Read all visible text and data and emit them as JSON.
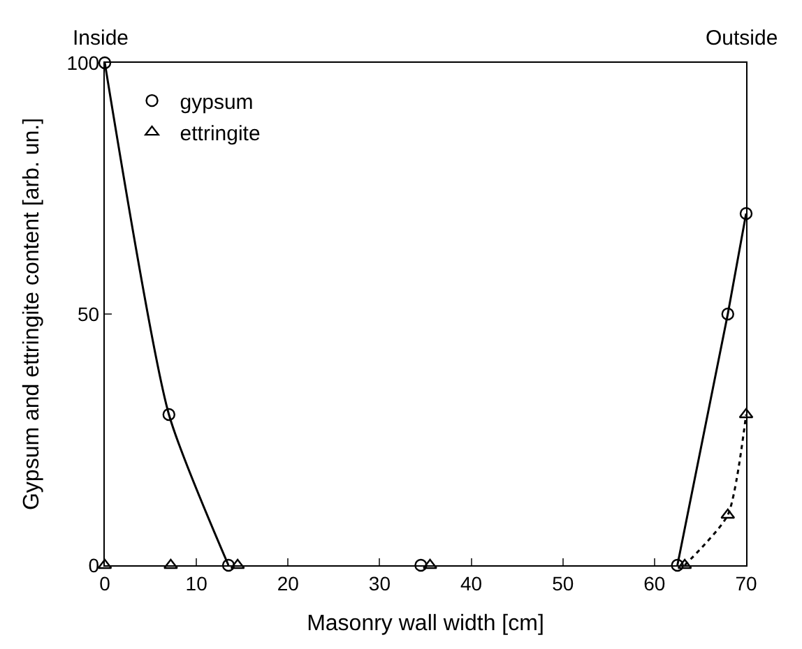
{
  "chart_data": {
    "type": "scatter",
    "xlabel": "Masonry wall width [cm]",
    "ylabel": "Gypsum and ettringite content [arb. un.]",
    "annotations": [
      "Inside",
      "Outside"
    ],
    "xlim": [
      0,
      70
    ],
    "xticks": [
      0,
      10,
      20,
      30,
      40,
      50,
      60,
      70
    ],
    "ylim": [
      0,
      100
    ],
    "yticks": [
      0,
      50,
      100
    ],
    "legend": "top left",
    "series": [
      {
        "name": "gypsum",
        "marker": "circle",
        "color": "#000000",
        "x": [
          0,
          7,
          13.5,
          34.5,
          62.5,
          68,
          70
        ],
        "values": [
          100,
          30,
          0,
          0,
          0,
          50,
          70
        ]
      },
      {
        "name": "ettringite",
        "marker": "triangle",
        "color": "#000000",
        "x": [
          0,
          7.2,
          14.5,
          35.5,
          63.3,
          68,
          70
        ],
        "values": [
          0,
          0,
          0,
          0,
          0,
          10,
          30
        ]
      },
      {
        "type": "line",
        "line_style": "solid",
        "color": "#000000",
        "x": [
          0,
          7,
          13.5
        ],
        "values": [
          100,
          30,
          0
        ]
      },
      {
        "type": "line",
        "line_style": "solid",
        "color": "#000000",
        "x": [
          62.5,
          68,
          70
        ],
        "values": [
          0,
          50,
          70
        ]
      },
      {
        "type": "line",
        "line_style": "dotted",
        "color": "#000000",
        "x": [
          63.3,
          68,
          70
        ],
        "values": [
          0,
          10,
          30
        ]
      }
    ]
  }
}
